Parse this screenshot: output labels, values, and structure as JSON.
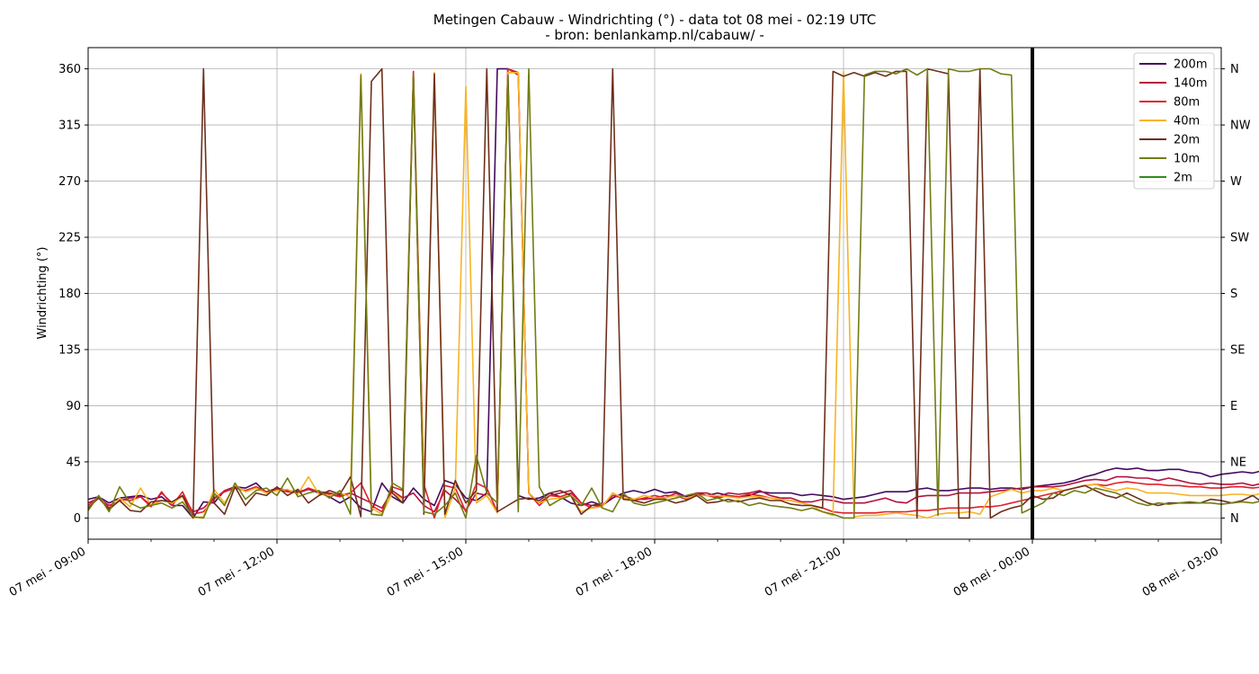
{
  "chart_data": {
    "type": "line",
    "title": "Metingen Cabauw - Windrichting (°) - data tot 08 mei - 02:19 UTC",
    "subtitle": "- bron: benlankamp.nl/cabauw/ -",
    "ylabel": "Windrichting (°)",
    "xlabel": "",
    "x_range": [
      "07 mei 09:00",
      "08 mei 03:00"
    ],
    "ylim": [
      -17,
      377
    ],
    "yticks": [
      0,
      45,
      90,
      135,
      180,
      225,
      270,
      315,
      360
    ],
    "y2ticks": [
      {
        "value": 0,
        "label": "N"
      },
      {
        "value": 45,
        "label": "NE"
      },
      {
        "value": 90,
        "label": "E"
      },
      {
        "value": 135,
        "label": "SE"
      },
      {
        "value": 180,
        "label": "S"
      },
      {
        "value": 225,
        "label": "SW"
      },
      {
        "value": 270,
        "label": "W"
      },
      {
        "value": 315,
        "label": "NW"
      },
      {
        "value": 360,
        "label": "N"
      }
    ],
    "xticks": [
      {
        "value": "07 mei 09:00",
        "label": "07 mei - 09:00"
      },
      {
        "value": "07 mei 12:00",
        "label": "07 mei - 12:00"
      },
      {
        "value": "07 mei 15:00",
        "label": "07 mei - 15:00"
      },
      {
        "value": "07 mei 18:00",
        "label": "07 mei - 18:00"
      },
      {
        "value": "07 mei 21:00",
        "label": "07 mei - 21:00"
      },
      {
        "value": "08 mei 00:00",
        "label": "08 mei - 00:00"
      },
      {
        "value": "08 mei 03:00",
        "label": "08 mei - 03:00"
      }
    ],
    "vline_at": "08 mei 00:00",
    "grid": true,
    "legend_position": "top-right",
    "x_step_minutes": 10,
    "x_start": "07 mei 09:00",
    "series": [
      {
        "name": "200m",
        "color": "#440a5e",
        "values": [
          15,
          17,
          12,
          16,
          17,
          18,
          15,
          17,
          10,
          10,
          0,
          13,
          12,
          22,
          25,
          24,
          28,
          20,
          24,
          22,
          21,
          23,
          20,
          17,
          12,
          17,
          8,
          5,
          28,
          17,
          12,
          24,
          15,
          10,
          30,
          27,
          16,
          14,
          20,
          360,
          360,
          18,
          15,
          16,
          20,
          17,
          12,
          10,
          13,
          10,
          16,
          20,
          22,
          20,
          23,
          20,
          21,
          17,
          20,
          18,
          20,
          18,
          17,
          18,
          21,
          20,
          20,
          20,
          18,
          19,
          18,
          17,
          15,
          16,
          17,
          19,
          21,
          21,
          21,
          23,
          24,
          22,
          22,
          23,
          24,
          24,
          23,
          24,
          24,
          23,
          25,
          26,
          27,
          28,
          30,
          33,
          35,
          38,
          40,
          39,
          40,
          38,
          38,
          39,
          39,
          37,
          36,
          33,
          35,
          36,
          37,
          36,
          38,
          43
        ]
      },
      {
        "name": "140m",
        "color": "#b5113f",
        "values": [
          12,
          16,
          10,
          14,
          16,
          17,
          10,
          20,
          12,
          18,
          5,
          8,
          16,
          21,
          24,
          22,
          25,
          21,
          24,
          22,
          20,
          23,
          21,
          20,
          18,
          20,
          16,
          12,
          8,
          22,
          16,
          20,
          10,
          5,
          22,
          15,
          6,
          20,
          18,
          5,
          360,
          357,
          20,
          12,
          18,
          20,
          22,
          12,
          10,
          10,
          18,
          18,
          15,
          15,
          16,
          18,
          18,
          15,
          20,
          20,
          17,
          20,
          19,
          20,
          22,
          18,
          16,
          16,
          13,
          13,
          15,
          14,
          12,
          12,
          12,
          14,
          16,
          13,
          12,
          17,
          18,
          18,
          18,
          20,
          20,
          20,
          21,
          22,
          23,
          24,
          25,
          25,
          25,
          26,
          28,
          30,
          31,
          30,
          33,
          33,
          32,
          32,
          30,
          32,
          30,
          28,
          27,
          28,
          27,
          27,
          28,
          26,
          28,
          30
        ]
      },
      {
        "name": "80m",
        "color": "#e0202a",
        "values": [
          10,
          17,
          8,
          15,
          14,
          17,
          9,
          21,
          10,
          21,
          3,
          5,
          15,
          22,
          24,
          22,
          25,
          20,
          23,
          21,
          20,
          24,
          21,
          19,
          17,
          20,
          28,
          10,
          5,
          25,
          22,
          358,
          27,
          0,
          26,
          24,
          5,
          28,
          24,
          5,
          360,
          355,
          20,
          10,
          18,
          17,
          20,
          12,
          8,
          10,
          18,
          16,
          14,
          16,
          18,
          16,
          20,
          15,
          19,
          18,
          16,
          18,
          17,
          19,
          18,
          16,
          15,
          14,
          12,
          10,
          8,
          5,
          4,
          4,
          4,
          4,
          5,
          5,
          5,
          6,
          6,
          7,
          8,
          8,
          8,
          9,
          9,
          10,
          12,
          14,
          16,
          18,
          20,
          22,
          24,
          26,
          27,
          26,
          28,
          29,
          28,
          27,
          27,
          26,
          26,
          25,
          25,
          24,
          24,
          25,
          25,
          24,
          25,
          27
        ]
      },
      {
        "name": "40m",
        "color": "#f8b322",
        "values": [
          6,
          18,
          6,
          16,
          9,
          24,
          10,
          14,
          12,
          17,
          0,
          1,
          23,
          12,
          26,
          21,
          24,
          20,
          22,
          23,
          19,
          33,
          19,
          18,
          20,
          17,
          356,
          8,
          3,
          20,
          15,
          355,
          18,
          357,
          0,
          24,
          346,
          12,
          18,
          4,
          357,
          357,
          20,
          12,
          15,
          16,
          18,
          5,
          8,
          9,
          20,
          16,
          15,
          18,
          16,
          16,
          18,
          16,
          18,
          18,
          18,
          17,
          16,
          17,
          17,
          16,
          15,
          14,
          12,
          10,
          5,
          2,
          358,
          1,
          2,
          2,
          3,
          4,
          3,
          2,
          0,
          3,
          4,
          4,
          5,
          3,
          17,
          20,
          23,
          20,
          22,
          22,
          24,
          22,
          24,
          26,
          27,
          24,
          22,
          24,
          23,
          20,
          20,
          20,
          19,
          18,
          18,
          18,
          18,
          19,
          19,
          18,
          20,
          22
        ]
      },
      {
        "name": "20m",
        "color": "#6e2f1c",
        "values": [
          8,
          16,
          7,
          14,
          6,
          5,
          13,
          14,
          13,
          18,
          0,
          360,
          12,
          3,
          25,
          10,
          20,
          18,
          25,
          18,
          23,
          12,
          18,
          22,
          19,
          33,
          1,
          350,
          360,
          20,
          12,
          355,
          3,
          356,
          3,
          30,
          12,
          22,
          360,
          5,
          10,
          15,
          16,
          14,
          20,
          22,
          18,
          3,
          10,
          12,
          360,
          15,
          14,
          12,
          15,
          15,
          12,
          14,
          18,
          12,
          13,
          15,
          13,
          15,
          16,
          14,
          14,
          11,
          10,
          10,
          8,
          358,
          354,
          357,
          354,
          357,
          354,
          358,
          358,
          0,
          360,
          358,
          356,
          0,
          0,
          360,
          0,
          5,
          8,
          10,
          18,
          15,
          16,
          22,
          24,
          26,
          22,
          18,
          16,
          20,
          16,
          12,
          10,
          12,
          12,
          12,
          12,
          15,
          14,
          12,
          14,
          18,
          12,
          15
        ]
      },
      {
        "name": "10m",
        "color": "#727c12",
        "values": [
          6,
          18,
          5,
          25,
          12,
          8,
          10,
          12,
          8,
          13,
          1,
          0,
          20,
          10,
          28,
          15,
          22,
          24,
          18,
          32,
          17,
          20,
          22,
          16,
          22,
          3,
          355,
          3,
          2,
          28,
          23,
          355,
          5,
          3,
          10,
          20,
          0,
          50,
          20,
          12,
          355,
          5,
          360,
          25,
          10,
          15,
          18,
          10,
          24,
          8,
          5,
          20,
          12,
          10,
          12,
          14,
          16,
          18,
          20,
          14,
          16,
          13,
          14,
          10,
          12,
          10,
          9,
          8,
          6,
          8,
          5,
          3,
          0,
          0,
          355,
          358,
          358,
          356,
          360,
          355,
          360,
          2,
          360,
          358,
          358,
          360,
          360,
          356,
          355,
          4,
          8,
          12,
          20,
          18,
          22,
          20,
          24,
          22,
          20,
          16,
          12,
          10,
          12,
          11,
          12,
          13,
          12,
          12,
          11,
          12,
          13,
          12,
          14,
          15
        ]
      },
      {
        "name": "2m",
        "color": "#2f8c1f",
        "values": []
      }
    ]
  }
}
